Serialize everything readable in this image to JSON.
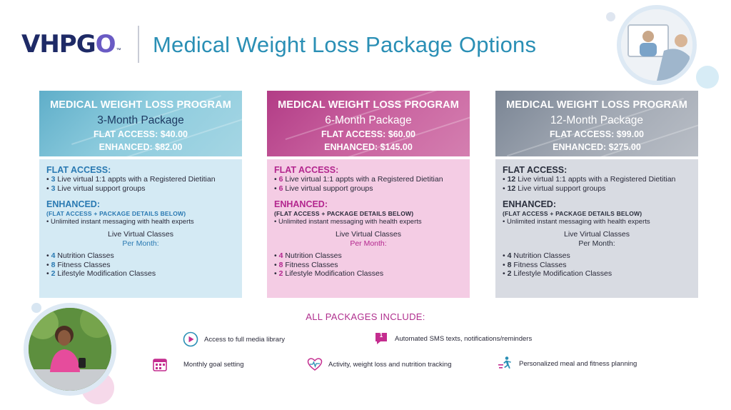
{
  "brand": {
    "logo_main": "VHPG",
    "logo_accent": "O",
    "logo_tm": "™"
  },
  "page": {
    "title": "Medical Weight Loss Package Options"
  },
  "packages": [
    {
      "program": "MEDICAL WEIGHT LOSS PROGRAM",
      "package": "3-Month Package",
      "flat_price": "FLAT ACCESS: $40.00",
      "enhanced_price": "ENHANCED: $82.00",
      "flat_title": "FLAT ACCESS:",
      "flat_items": [
        {
          "num": "3",
          "text": " Live virtual 1:1 appts with a Registered Dietitian"
        },
        {
          "num": "3",
          "text": " Live virtual support groups"
        }
      ],
      "enhanced_title": "ENHANCED:",
      "enhanced_sub": "(FLAT ACCESS + PACKAGE DETAILS BELOW)",
      "enhanced_note": "• Unlimited instant messaging with health experts",
      "classes_title": "Live Virtual Classes",
      "classes_sub": "Per Month:",
      "class_items": [
        {
          "num": "4",
          "text": " Nutrition Classes"
        },
        {
          "num": "8",
          "text": " Fitness Classes"
        },
        {
          "num": "2",
          "text": " Lifestyle Modification Classes"
        }
      ]
    },
    {
      "program": "MEDICAL WEIGHT LOSS PROGRAM",
      "package": "6-Month Package",
      "flat_price": "FLAT ACCESS: $60.00",
      "enhanced_price": "ENHANCED: $145.00",
      "flat_title": "FLAT ACCESS:",
      "flat_items": [
        {
          "num": "6",
          "text": " Live virtual 1:1 appts with a Registered Dietitian"
        },
        {
          "num": "6",
          "text": " Live virtual support groups"
        }
      ],
      "enhanced_title": "ENHANCED:",
      "enhanced_sub": "(FLAT ACCESS + PACKAGE DETAILS BELOW)",
      "enhanced_note": "• Unlimited instant messaging with health experts",
      "classes_title": "Live Virtual Classes",
      "classes_sub": "Per Month:",
      "class_items": [
        {
          "num": "4",
          "text": " Nutrition Classes"
        },
        {
          "num": "8",
          "text": " Fitness Classes"
        },
        {
          "num": "2",
          "text": " Lifestyle Modification Classes"
        }
      ]
    },
    {
      "program": "MEDICAL WEIGHT LOSS PROGRAM",
      "package": "12-Month Package",
      "flat_price": "FLAT ACCESS: $99.00",
      "enhanced_price": "ENHANCED: $275.00",
      "flat_title": "FLAT ACCESS:",
      "flat_items": [
        {
          "num": "12",
          "text": " Live virtual 1:1 appts with a Registered Dietitian"
        },
        {
          "num": "12",
          "text": " Live virtual support groups"
        }
      ],
      "enhanced_title": "ENHANCED:",
      "enhanced_sub": "(FLAT ACCESS + PACKAGE DETAILS BELOW)",
      "enhanced_note": "• Unlimited instant messaging with health experts",
      "classes_title": "Live Virtual Classes",
      "classes_sub": "Per Month:",
      "class_items": [
        {
          "num": "4",
          "text": " Nutrition Classes"
        },
        {
          "num": "8",
          "text": " Fitness Classes"
        },
        {
          "num": "2",
          "text": " Lifestyle Modification Classes"
        }
      ]
    }
  ],
  "includes": {
    "title": "ALL PACKAGES INCLUDE:",
    "items": [
      {
        "icon": "play-icon",
        "label": "Access to full media library"
      },
      {
        "icon": "sms-icon",
        "badge": "1",
        "label": "Automated SMS texts, notifications/reminders"
      },
      {
        "icon": "calendar-icon",
        "label": "Monthly goal setting"
      },
      {
        "icon": "heart-pulse-icon",
        "label": "Activity, weight loss and nutrition tracking"
      },
      {
        "icon": "runner-icon",
        "label": "Personalized meal and fitness planning"
      }
    ]
  },
  "colors": {
    "title_blue": "#2a8fb5",
    "brand_navy": "#1e2a66",
    "brand_purple": "#6a5bc4",
    "accent_pink": "#b02f8e",
    "card1_body": "#d4eaf4",
    "card2_body": "#f4cce4",
    "card3_body": "#d8dbe2"
  }
}
